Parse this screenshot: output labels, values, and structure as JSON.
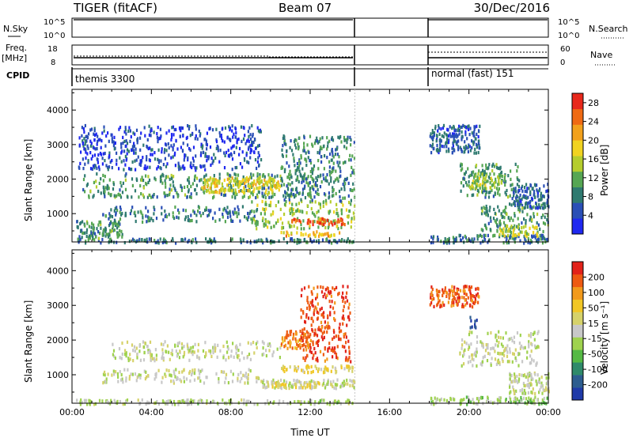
{
  "header": {
    "station": "TIGER (fitACF)",
    "beam": "Beam 07",
    "date": "30/Dec/2016"
  },
  "status_panels": {
    "nsky_label": "N.Sky",
    "nsky_ticks": [
      "10^5",
      "10^0"
    ],
    "nsearch_label": "N.Search",
    "freq_label": "Freq.",
    "freq_unit": "[MHz]",
    "freq_ticks": [
      "18",
      "8"
    ],
    "nave_label": "Nave",
    "nave_ticks": [
      "60",
      "0"
    ],
    "cpid_label": "CPID",
    "cpid_segments": [
      {
        "name": "themis 3300",
        "start_h": 0,
        "end_h": 14.25
      },
      {
        "name": "normal (fast) 151",
        "start_h": 18,
        "end_h": 24
      }
    ]
  },
  "chart_data": [
    {
      "type": "heatmap",
      "panel": "power",
      "xlabel": "",
      "ylabel": "Slant Range [km]",
      "xlim": [
        0,
        24
      ],
      "ylim": [
        180,
        4600
      ],
      "yticks": [
        "1000",
        "2000",
        "3000",
        "4000"
      ],
      "colorbar": {
        "label": "Power [dB]",
        "ticks": [
          "4",
          "8",
          "12",
          "16",
          "20",
          "24",
          "28"
        ],
        "range": [
          0,
          30
        ],
        "colors": [
          "#1f28f0",
          "#2a4fb6",
          "#2f7a70",
          "#56a653",
          "#b5cd2d",
          "#f1d320",
          "#f2a11c",
          "#ef6a13",
          "#e8281b"
        ]
      },
      "data_gap": [
        14.25,
        18.0
      ],
      "regions": [
        {
          "t": [
            0.2,
            14.2
          ],
          "r": [
            190,
            320
          ],
          "value": 8
        },
        {
          "t": [
            0.2,
            2.5
          ],
          "r": [
            320,
            820
          ],
          "value": 10
        },
        {
          "t": [
            1.5,
            9.5
          ],
          "r": [
            800,
            1250
          ],
          "value": 8
        },
        {
          "t": [
            9.0,
            14.2
          ],
          "r": [
            600,
            1400
          ],
          "value": 14
        },
        {
          "t": [
            11.0,
            13.9
          ],
          "r": [
            720,
            900
          ],
          "value": 26
        },
        {
          "t": [
            10.5,
            13.5
          ],
          "r": [
            380,
            520
          ],
          "value": 20
        },
        {
          "t": [
            0.5,
            12.5
          ],
          "r": [
            1500,
            2200
          ],
          "value": 10
        },
        {
          "t": [
            6.5,
            10.5
          ],
          "r": [
            1650,
            2100
          ],
          "value": 17
        },
        {
          "t": [
            10.5,
            14.2
          ],
          "r": [
            1400,
            3300
          ],
          "value": 9
        },
        {
          "t": [
            0.3,
            9.5
          ],
          "r": [
            2300,
            3600
          ],
          "value": 4
        },
        {
          "t": [
            18.0,
            24.0
          ],
          "r": [
            190,
            420
          ],
          "value": 8
        },
        {
          "t": [
            20.5,
            24.0
          ],
          "r": [
            500,
            1300
          ],
          "value": 10
        },
        {
          "t": [
            21.5,
            23.5
          ],
          "r": [
            380,
            700
          ],
          "value": 16
        },
        {
          "t": [
            19.5,
            22.5
          ],
          "r": [
            1500,
            2500
          ],
          "value": 10
        },
        {
          "t": [
            20.0,
            21.8
          ],
          "r": [
            1750,
            2200
          ],
          "value": 14
        },
        {
          "t": [
            22.0,
            24.0
          ],
          "r": [
            1200,
            1900
          ],
          "value": 6
        },
        {
          "t": [
            18.0,
            20.5
          ],
          "r": [
            2800,
            3600
          ],
          "value": 6
        }
      ]
    },
    {
      "type": "heatmap",
      "panel": "velocity",
      "xlabel": "Time UT",
      "ylabel": "Slant Range [km]",
      "xlim": [
        0,
        24
      ],
      "ylim": [
        180,
        4600
      ],
      "xticks": [
        "00:00",
        "04:00",
        "08:00",
        "12:00",
        "16:00",
        "20:00",
        "00:00"
      ],
      "yticks": [
        "1000",
        "2000",
        "3000",
        "4000"
      ],
      "colorbar": {
        "label": "Velocity [m s⁻¹]",
        "ticks": [
          "200",
          "100",
          "50",
          "15",
          "-15",
          "-50",
          "-100",
          "-200"
        ],
        "range": [
          -250,
          250
        ],
        "colors": [
          "#1f3aa8",
          "#2d5d8f",
          "#2f8a6a",
          "#55b944",
          "#9fd24e",
          "#c8c8c8",
          "#d6d26a",
          "#f1c726",
          "#f29a1c",
          "#ee5a12",
          "#e2221a"
        ]
      },
      "data_gap": [
        14.25,
        18.0
      ],
      "regions": [
        {
          "t": [
            0.2,
            14.2
          ],
          "r": [
            190,
            320
          ],
          "value": -20
        },
        {
          "t": [
            9.5,
            14.2
          ],
          "r": [
            650,
            900
          ],
          "value": 0
        },
        {
          "t": [
            10.0,
            12.5
          ],
          "r": [
            650,
            820
          ],
          "value": 60
        },
        {
          "t": [
            1.5,
            9.5
          ],
          "r": [
            800,
            1200
          ],
          "value": 0
        },
        {
          "t": [
            2.0,
            10.5
          ],
          "r": [
            1450,
            2000
          ],
          "value": 0
        },
        {
          "t": [
            10.5,
            14.2
          ],
          "r": [
            1100,
            1300
          ],
          "value": 60
        },
        {
          "t": [
            10.5,
            12.0
          ],
          "r": [
            1800,
            2300
          ],
          "value": 150
        },
        {
          "t": [
            11.5,
            14.0
          ],
          "r": [
            1400,
            3600
          ],
          "value": 200
        },
        {
          "t": [
            18.0,
            24.0
          ],
          "r": [
            190,
            400
          ],
          "value": -40
        },
        {
          "t": [
            19.5,
            23.5
          ],
          "r": [
            1300,
            2300
          ],
          "value": 0
        },
        {
          "t": [
            22.0,
            24.0
          ],
          "r": [
            500,
            1100
          ],
          "value": 0
        },
        {
          "t": [
            20.0,
            20.4
          ],
          "r": [
            2400,
            2700
          ],
          "value": -220
        },
        {
          "t": [
            18.0,
            20.5
          ],
          "r": [
            3000,
            3600
          ],
          "value": 180
        }
      ]
    }
  ]
}
